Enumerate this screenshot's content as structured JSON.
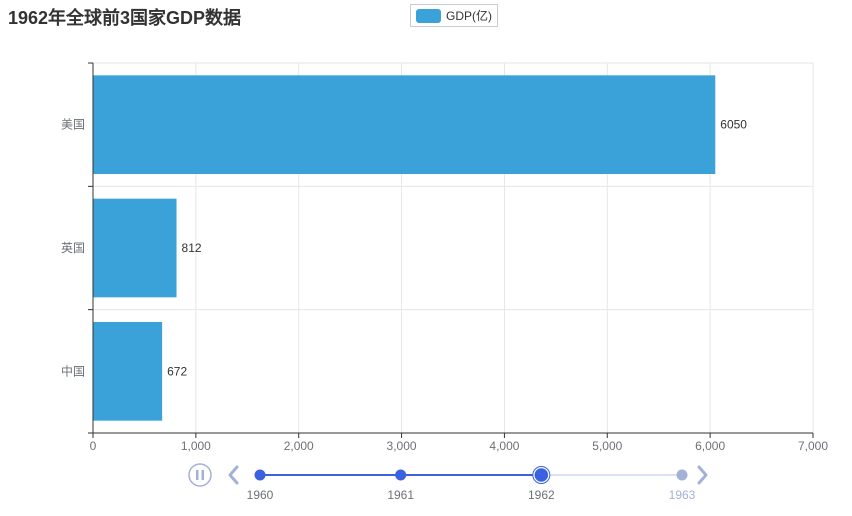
{
  "title": "1962年全球前3国家GDP数据",
  "legend": {
    "label": "GDP(亿)"
  },
  "colors": {
    "bar": "#3aa2d9",
    "grid": "#e6e6e6",
    "axis": "#333333",
    "tick_text": "#6e7079",
    "timeline_active": "#3a62e0",
    "timeline_inactive": "#a4b1d7",
    "timeline_track": "#dae1f5"
  },
  "chart_data": {
    "type": "bar",
    "orientation": "horizontal",
    "title": "1962年全球前3国家GDP数据",
    "categories": [
      "美国",
      "英国",
      "中国"
    ],
    "series": [
      {
        "name": "GDP(亿)",
        "values": [
          6050,
          812,
          672
        ]
      }
    ],
    "xlim": [
      0,
      7000
    ],
    "xticks": [
      "0",
      "1,000",
      "2,000",
      "3,000",
      "4,000",
      "5,000",
      "6,000",
      "7,000"
    ],
    "grid": true,
    "legend_position": "top-center"
  },
  "timeline": {
    "years": [
      "1960",
      "1961",
      "1962",
      "1963"
    ],
    "current": "1962",
    "play_icon": "pause-icon",
    "prev_icon": "chevron-left-icon",
    "next_icon": "chevron-right-icon"
  }
}
